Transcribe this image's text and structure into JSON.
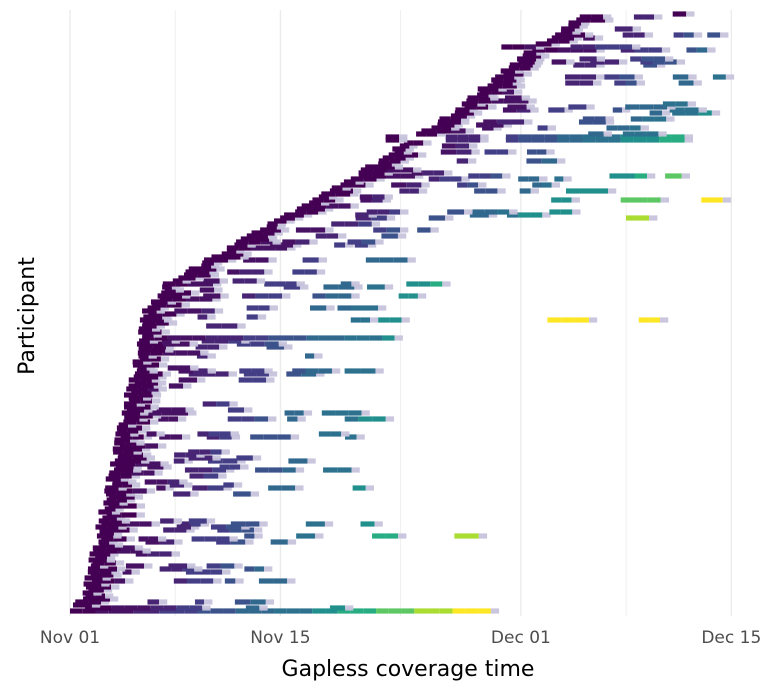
{
  "chart_data": {
    "type": "timeline",
    "xlabel": "Gapless coverage time",
    "ylabel": "Participant",
    "x_axis": {
      "unit": "days since Nov 01",
      "xlim": [
        -1,
        44
      ],
      "ticks": [
        {
          "label": "Nov 01",
          "value": 0
        },
        {
          "label": "Nov 15",
          "value": 14
        },
        {
          "label": "Dec 01",
          "value": 30
        },
        {
          "label": "Dec 15",
          "value": 44
        }
      ]
    },
    "grid": "vertical major and minor lines",
    "legend": "none",
    "color_scale": "viridis (segment index along each participant's coverage run)",
    "colors": {
      "light_end": "#c7c3dc",
      "background": "#ffffff",
      "grid": "#ebebeb"
    },
    "participants_count": 200,
    "notes": "Each row is a participant; horizontal segments mark days of gapless coverage, drawn in order of enrolment start date."
  }
}
